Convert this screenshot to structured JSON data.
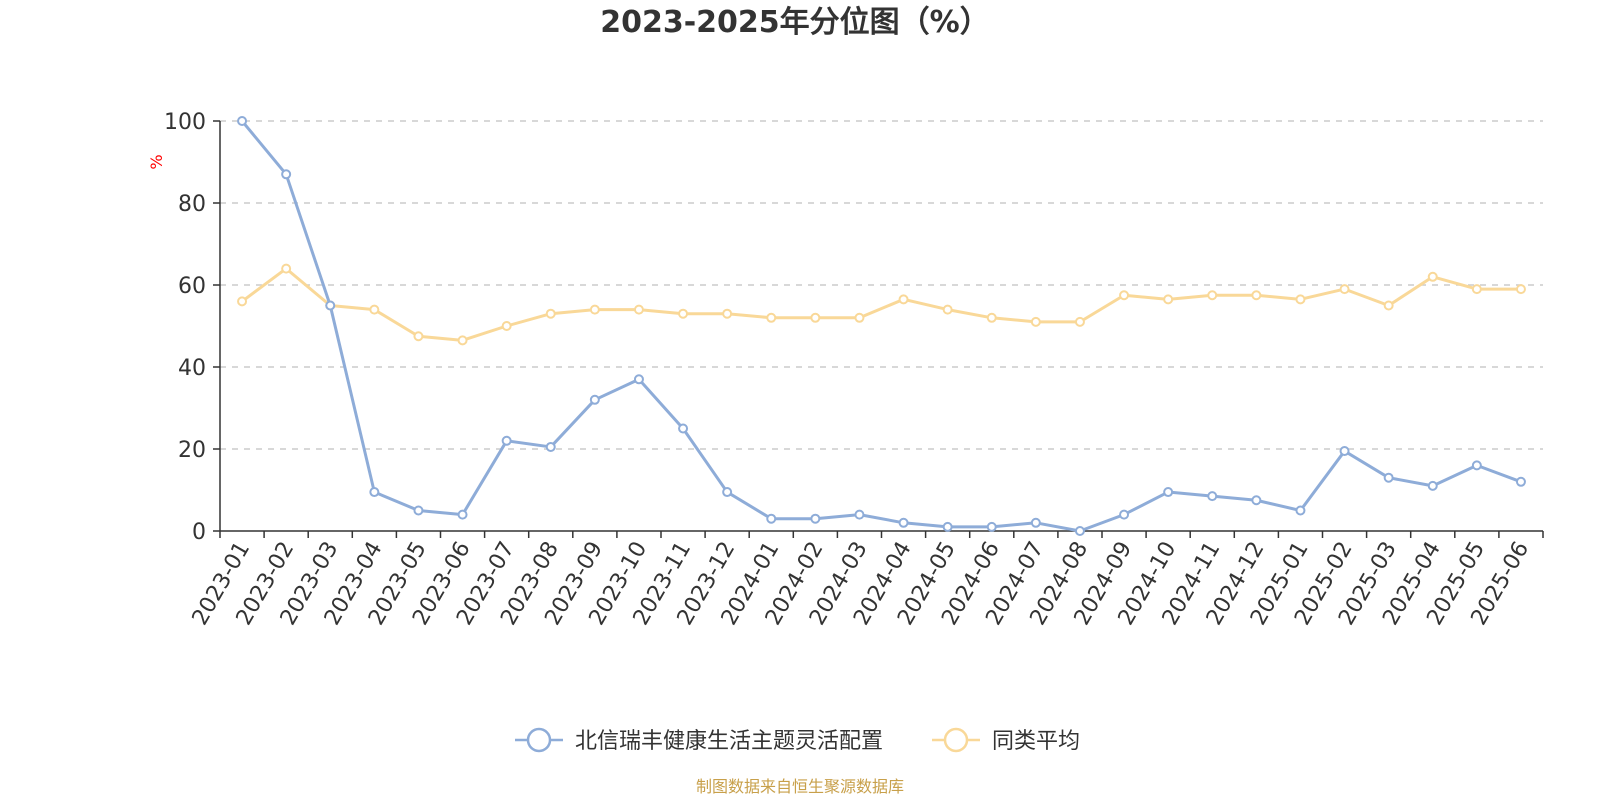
{
  "chart_data": {
    "type": "line",
    "title": "2023-2025年分位图（%）",
    "ylabel": "%",
    "ylim": [
      0,
      100
    ],
    "yticks": [
      0,
      20,
      40,
      60,
      80,
      100
    ],
    "grid": true,
    "legend_position": "bottom",
    "categories": [
      "2023-01",
      "2023-02",
      "2023-03",
      "2023-04",
      "2023-05",
      "2023-06",
      "2023-07",
      "2023-08",
      "2023-09",
      "2023-10",
      "2023-11",
      "2023-12",
      "2024-01",
      "2024-02",
      "2024-03",
      "2024-04",
      "2024-05",
      "2024-06",
      "2024-07",
      "2024-08",
      "2024-09",
      "2024-10",
      "2024-11",
      "2024-12",
      "2025-01",
      "2025-02",
      "2025-03",
      "2025-04",
      "2025-05",
      "2025-06"
    ],
    "series": [
      {
        "name": "北信瑞丰健康生活主题灵活配置",
        "color": "#8eacd8",
        "values": [
          100,
          87,
          55,
          9.5,
          5,
          4,
          22,
          20.5,
          32,
          37,
          25,
          9.5,
          3,
          3,
          4,
          2,
          1,
          1,
          2,
          0,
          4,
          9.5,
          8.5,
          7.5,
          5,
          19.5,
          13,
          11,
          16,
          12
        ]
      },
      {
        "name": "同类平均",
        "color": "#f9d898",
        "values": [
          56,
          64,
          55,
          54,
          47.5,
          46.5,
          50,
          53,
          54,
          54,
          53,
          53,
          52,
          52,
          52,
          56.5,
          54,
          52,
          51,
          51,
          57.5,
          56.5,
          57.5,
          57.5,
          56.5,
          59,
          55,
          62,
          59,
          59
        ]
      }
    ]
  },
  "footer": {
    "source": "制图数据来自恒生聚源数据库"
  }
}
